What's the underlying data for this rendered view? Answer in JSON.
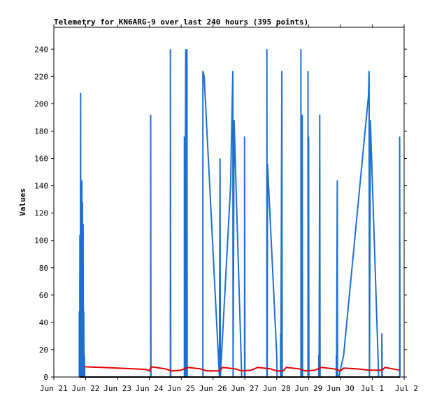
{
  "chart_data": {
    "type": "line",
    "title": "Telemetry for KN6ARG-9 over last 240 hours (395 points)",
    "xlabel": "",
    "ylabel": "Values",
    "x_ticks": [
      "Jun 21",
      "Jun 22",
      "Jun 23",
      "Jun 24",
      "Jun 25",
      "Jun 26",
      "Jun 27",
      "Jun 28",
      "Jun 29",
      "Jun 30",
      "Jul 1",
      "Jul 2"
    ],
    "y_ticks": [
      0,
      20,
      40,
      60,
      80,
      100,
      120,
      140,
      160,
      180,
      200,
      220,
      240
    ],
    "xlim": [
      0,
      11
    ],
    "ylim": [
      0,
      256
    ],
    "x_unit": "days since Jun 21",
    "series": [
      {
        "name": "",
        "color": "#1f6fcf",
        "points": [
          [
            0.8,
            0
          ],
          [
            0.8,
            48
          ],
          [
            0.81,
            0
          ],
          [
            0.82,
            104
          ],
          [
            0.83,
            0
          ],
          [
            0.84,
            208
          ],
          [
            0.85,
            0
          ],
          [
            0.86,
            144
          ],
          [
            0.87,
            0
          ],
          [
            0.88,
            144
          ],
          [
            0.89,
            0
          ],
          [
            0.9,
            128
          ],
          [
            0.91,
            0
          ],
          [
            0.92,
            112
          ],
          [
            0.93,
            0
          ],
          [
            0.94,
            48
          ],
          [
            0.95,
            0
          ],
          [
            0.96,
            16
          ],
          [
            0.97,
            0
          ],
          [
            3.04,
            0
          ],
          [
            3.04,
            192
          ],
          [
            3.05,
            0
          ],
          [
            3.66,
            0
          ],
          [
            3.66,
            240
          ],
          [
            3.67,
            0
          ],
          [
            4.1,
            0
          ],
          [
            4.1,
            176
          ],
          [
            4.11,
            0
          ],
          [
            4.14,
            240
          ],
          [
            4.15,
            0
          ],
          [
            4.18,
            240
          ],
          [
            4.19,
            0
          ],
          [
            4.68,
            0
          ],
          [
            4.68,
            224
          ],
          [
            4.72,
            220
          ],
          [
            5.2,
            0
          ],
          [
            5.22,
            160
          ],
          [
            5.23,
            0
          ],
          [
            5.55,
            140
          ],
          [
            5.62,
            224
          ],
          [
            5.63,
            0
          ],
          [
            5.66,
            188
          ],
          [
            5.9,
            0
          ],
          [
            5.99,
            0
          ],
          [
            5.99,
            176
          ],
          [
            6.0,
            0
          ],
          [
            6.69,
            0
          ],
          [
            6.69,
            240
          ],
          [
            6.7,
            0
          ],
          [
            6.71,
            156
          ],
          [
            7.0,
            16
          ],
          [
            7.01,
            0
          ],
          [
            7.12,
            0
          ],
          [
            7.12,
            32
          ],
          [
            7.13,
            0
          ],
          [
            7.16,
            224
          ],
          [
            7.17,
            0
          ],
          [
            7.76,
            0
          ],
          [
            7.76,
            240
          ],
          [
            7.77,
            0
          ],
          [
            7.8,
            192
          ],
          [
            7.81,
            0
          ],
          [
            7.98,
            0
          ],
          [
            7.98,
            224
          ],
          [
            7.99,
            0
          ],
          [
            8.0,
            176
          ],
          [
            8.01,
            0
          ],
          [
            8.32,
            0
          ],
          [
            8.32,
            16
          ],
          [
            8.33,
            0
          ],
          [
            8.35,
            192
          ],
          [
            8.36,
            0
          ],
          [
            8.87,
            0
          ],
          [
            8.87,
            16
          ],
          [
            8.88,
            0
          ],
          [
            8.9,
            144
          ],
          [
            8.91,
            0
          ],
          [
            8.95,
            0
          ],
          [
            9.1,
            16
          ],
          [
            9.88,
            206
          ],
          [
            9.9,
            224
          ],
          [
            9.91,
            0
          ],
          [
            9.94,
            188
          ],
          [
            10.2,
            0
          ],
          [
            10.3,
            0
          ],
          [
            10.3,
            32
          ],
          [
            10.31,
            0
          ],
          [
            10.86,
            0
          ],
          [
            10.86,
            176
          ],
          [
            10.87,
            0
          ]
        ]
      },
      {
        "name": "",
        "color": "#e00000",
        "points": [
          [
            0.95,
            8
          ],
          [
            1.0,
            7.5
          ],
          [
            1.5,
            7
          ],
          [
            2.0,
            6.5
          ],
          [
            2.5,
            6
          ],
          [
            2.9,
            5.5
          ],
          [
            3.0,
            4.5
          ],
          [
            3.06,
            7.5
          ],
          [
            3.5,
            6
          ],
          [
            3.7,
            4.5
          ],
          [
            4.0,
            5
          ],
          [
            4.2,
            7
          ],
          [
            4.6,
            6
          ],
          [
            4.8,
            4.5
          ],
          [
            5.2,
            4.5
          ],
          [
            5.3,
            7
          ],
          [
            5.7,
            6
          ],
          [
            5.9,
            4.5
          ],
          [
            6.2,
            5
          ],
          [
            6.4,
            7
          ],
          [
            6.8,
            6
          ],
          [
            7.0,
            4.5
          ],
          [
            7.2,
            4.5
          ],
          [
            7.3,
            7
          ],
          [
            7.7,
            6
          ],
          [
            7.9,
            4.5
          ],
          [
            8.2,
            5
          ],
          [
            8.4,
            7
          ],
          [
            8.8,
            6
          ],
          [
            9.0,
            4.5
          ],
          [
            9.1,
            6.5
          ],
          [
            9.5,
            6
          ],
          [
            9.9,
            5
          ],
          [
            10.3,
            5
          ],
          [
            10.4,
            7
          ],
          [
            10.86,
            5
          ]
        ]
      },
      {
        "name": "",
        "color": "#000000",
        "points": [
          [
            0.8,
            0
          ],
          [
            10.87,
            0
          ]
        ]
      }
    ]
  }
}
